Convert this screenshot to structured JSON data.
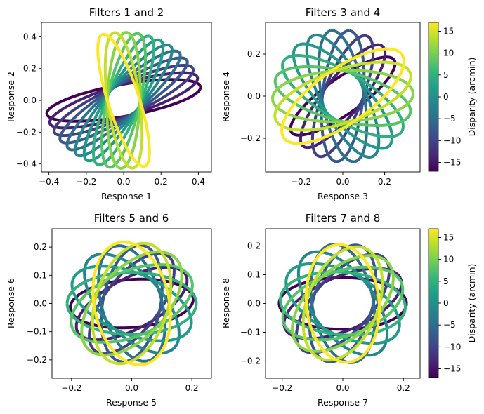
{
  "chart_data": [
    {
      "type": "line",
      "title": "Filters 1 and 2",
      "xlabel": "Response 1",
      "ylabel": "Response 2",
      "xlim": [
        -0.44,
        0.47
      ],
      "ylim": [
        -0.45,
        0.49
      ],
      "xticks": [
        -0.4,
        -0.2,
        0.0,
        0.2,
        0.4
      ],
      "xtick_labels": [
        "−0.4",
        "−0.2",
        "0.0",
        "0.2",
        "0.4"
      ],
      "yticks": [
        -0.4,
        -0.2,
        0.0,
        0.2,
        0.4
      ],
      "ytick_labels": [
        "−0.4",
        "−0.2",
        "0.0",
        "0.2",
        "0.4"
      ],
      "ellipses": {
        "count": 12,
        "a_start": 0.42,
        "a_end": 0.43,
        "b_start": 0.1,
        "b_end": 0.085,
        "angle_start_deg": 12,
        "angle_end_deg": 105,
        "disparity_range": [
          -17,
          17
        ]
      }
    },
    {
      "type": "line",
      "title": "Filters 3 and 4",
      "xlabel": "Response 3",
      "ylabel": "Response 4",
      "xlim": [
        -0.37,
        0.37
      ],
      "ylim": [
        -0.36,
        0.35
      ],
      "xticks": [
        -0.2,
        0.0,
        0.2
      ],
      "xtick_labels": [
        "−0.2",
        "0.0",
        "0.2"
      ],
      "yticks": [
        -0.2,
        0.0,
        0.2
      ],
      "ytick_labels": [
        "−0.2",
        "0.0",
        "0.2"
      ],
      "ellipses": {
        "count": 12,
        "a_start": 0.3,
        "a_end": 0.345,
        "b_start": 0.085,
        "b_end": 0.13,
        "angle_start_deg": 35,
        "angle_end_deg": 215,
        "disparity_range": [
          -17,
          17
        ]
      }
    },
    {
      "type": "line",
      "title": "Filters 5 and 6",
      "xlabel": "Response 5",
      "ylabel": "Response 6",
      "xlim": [
        -0.265,
        0.265
      ],
      "ylim": [
        -0.265,
        0.265
      ],
      "xticks": [
        -0.2,
        0.0,
        0.2
      ],
      "xtick_labels": [
        "−0.2",
        "0.0",
        "0.2"
      ],
      "yticks": [
        -0.2,
        -0.1,
        0.0,
        0.1,
        0.2
      ],
      "ytick_labels": [
        "−0.2",
        "−0.1",
        "0.0",
        "0.1",
        "0.2"
      ],
      "ellipses": {
        "count": 12,
        "a_start": 0.205,
        "a_end": 0.22,
        "b_start": 0.085,
        "b_end": 0.125,
        "angle_start_deg": 5,
        "angle_end_deg": 280,
        "disparity_range": [
          -17,
          17
        ]
      }
    },
    {
      "type": "line",
      "title": "Filters 7 and 8",
      "xlabel": "Response 7",
      "ylabel": "Response 8",
      "xlim": [
        -0.255,
        0.255
      ],
      "ylim": [
        -0.26,
        0.26
      ],
      "xticks": [
        -0.2,
        0.0,
        0.2
      ],
      "xtick_labels": [
        "−0.2",
        "0.0",
        "0.2"
      ],
      "yticks": [
        -0.2,
        -0.1,
        0.0,
        0.1,
        0.2
      ],
      "ytick_labels": [
        "−0.2",
        "−0.1",
        "0.0",
        "0.1",
        "0.2"
      ],
      "ellipses": {
        "count": 12,
        "a_start": 0.21,
        "a_end": 0.205,
        "b_start": 0.09,
        "b_end": 0.12,
        "angle_start_deg": 0,
        "angle_end_deg": 275,
        "disparity_range": [
          -17,
          17
        ]
      }
    }
  ],
  "colorbars": [
    {
      "label": "Disparity (arcmin)",
      "range": [
        -17,
        17
      ],
      "ticks": [
        -15,
        -10,
        -5,
        0,
        5,
        10,
        15
      ],
      "tick_labels": [
        "−15",
        "−10",
        "−5",
        "0",
        "5",
        "10",
        "15"
      ],
      "colormap": "viridis"
    },
    {
      "label": "Disparity (arcmin)",
      "range": [
        -17,
        17
      ],
      "ticks": [
        -15,
        -10,
        -5,
        0,
        5,
        10,
        15
      ],
      "tick_labels": [
        "−15",
        "−10",
        "−5",
        "0",
        "5",
        "10",
        "15"
      ],
      "colormap": "viridis"
    }
  ],
  "colors": {
    "viridis_stops": [
      "#440154",
      "#482878",
      "#3e4989",
      "#31688e",
      "#26828e",
      "#1f9e89",
      "#35b779",
      "#6ece58",
      "#b5de2b",
      "#fde725"
    ]
  }
}
